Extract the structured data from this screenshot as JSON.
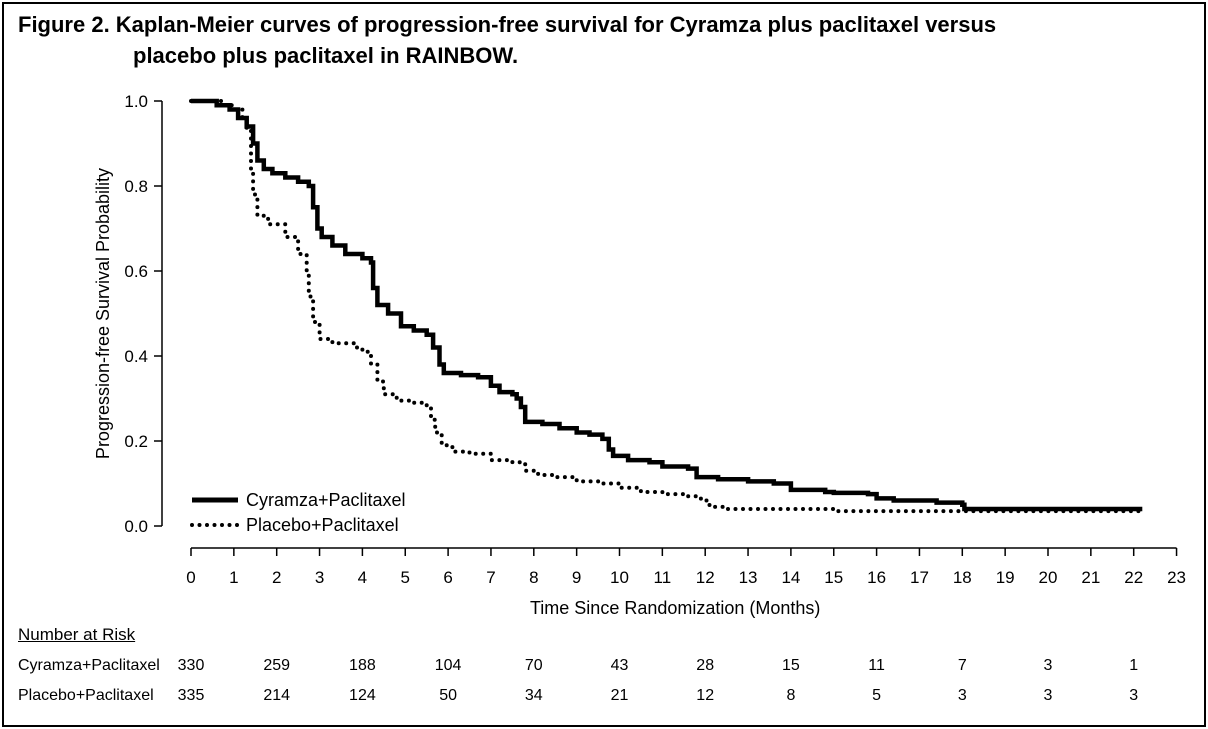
{
  "figure": {
    "title_line1": "Figure 2. Kaplan-Meier curves of progression-free survival for Cyramza plus paclitaxel versus",
    "title_line2": "placebo plus paclitaxel in RAINBOW."
  },
  "chart_data": {
    "type": "line",
    "step": true,
    "xlabel": "Time Since Randomization (Months)",
    "ylabel": "Progression-free Survival Probability",
    "xlim": [
      0,
      23
    ],
    "ylim": [
      0,
      1.0
    ],
    "x_ticks": [
      "0",
      "1",
      "2",
      "3",
      "4",
      "5",
      "6",
      "7",
      "8",
      "9",
      "10",
      "11",
      "12",
      "13",
      "14",
      "15",
      "16",
      "17",
      "18",
      "19",
      "20",
      "21",
      "22",
      "23"
    ],
    "y_ticks": [
      "0.0",
      "0.2",
      "0.4",
      "0.6",
      "0.8",
      "1.0"
    ],
    "legend_position": "bottom-left",
    "grid": false,
    "series": [
      {
        "name": "Cyramza+Paclitaxel",
        "style": "solid",
        "points": [
          [
            0,
            1.0
          ],
          [
            0.3,
            1.0
          ],
          [
            0.6,
            0.99
          ],
          [
            0.9,
            0.98
          ],
          [
            1.1,
            0.96
          ],
          [
            1.3,
            0.94
          ],
          [
            1.45,
            0.9
          ],
          [
            1.55,
            0.86
          ],
          [
            1.7,
            0.84
          ],
          [
            1.9,
            0.83
          ],
          [
            2.2,
            0.82
          ],
          [
            2.5,
            0.81
          ],
          [
            2.75,
            0.8
          ],
          [
            2.85,
            0.75
          ],
          [
            2.95,
            0.7
          ],
          [
            3.05,
            0.68
          ],
          [
            3.3,
            0.66
          ],
          [
            3.6,
            0.64
          ],
          [
            4.0,
            0.63
          ],
          [
            4.2,
            0.62
          ],
          [
            4.25,
            0.56
          ],
          [
            4.35,
            0.52
          ],
          [
            4.6,
            0.5
          ],
          [
            4.9,
            0.47
          ],
          [
            5.2,
            0.46
          ],
          [
            5.5,
            0.45
          ],
          [
            5.65,
            0.42
          ],
          [
            5.8,
            0.38
          ],
          [
            5.9,
            0.36
          ],
          [
            6.3,
            0.355
          ],
          [
            6.7,
            0.35
          ],
          [
            7.0,
            0.33
          ],
          [
            7.2,
            0.315
          ],
          [
            7.5,
            0.31
          ],
          [
            7.6,
            0.3
          ],
          [
            7.7,
            0.28
          ],
          [
            7.8,
            0.245
          ],
          [
            8.2,
            0.24
          ],
          [
            8.6,
            0.23
          ],
          [
            9.0,
            0.22
          ],
          [
            9.3,
            0.215
          ],
          [
            9.6,
            0.205
          ],
          [
            9.75,
            0.18
          ],
          [
            9.85,
            0.165
          ],
          [
            10.2,
            0.155
          ],
          [
            10.7,
            0.15
          ],
          [
            11.0,
            0.14
          ],
          [
            11.6,
            0.135
          ],
          [
            11.8,
            0.115
          ],
          [
            12.3,
            0.11
          ],
          [
            13.0,
            0.105
          ],
          [
            13.6,
            0.1
          ],
          [
            14.0,
            0.085
          ],
          [
            14.8,
            0.08
          ],
          [
            15.0,
            0.078
          ],
          [
            15.8,
            0.075
          ],
          [
            16.0,
            0.065
          ],
          [
            16.4,
            0.06
          ],
          [
            17.0,
            0.06
          ],
          [
            17.4,
            0.055
          ],
          [
            18.0,
            0.05
          ],
          [
            18.05,
            0.04
          ],
          [
            18.5,
            0.04
          ],
          [
            19.0,
            0.04
          ],
          [
            20.0,
            0.04
          ],
          [
            21.0,
            0.04
          ],
          [
            22.0,
            0.04
          ],
          [
            22.2,
            0.04
          ]
        ]
      },
      {
        "name": "Placebo+Paclitaxel",
        "style": "dotted",
        "points": [
          [
            0,
            1.0
          ],
          [
            0.4,
            1.0
          ],
          [
            0.7,
            0.99
          ],
          [
            1.0,
            0.98
          ],
          [
            1.2,
            0.96
          ],
          [
            1.3,
            0.93
          ],
          [
            1.4,
            0.84
          ],
          [
            1.45,
            0.78
          ],
          [
            1.55,
            0.73
          ],
          [
            1.8,
            0.71
          ],
          [
            2.2,
            0.68
          ],
          [
            2.5,
            0.64
          ],
          [
            2.7,
            0.6
          ],
          [
            2.75,
            0.54
          ],
          [
            2.85,
            0.48
          ],
          [
            3.0,
            0.44
          ],
          [
            3.3,
            0.43
          ],
          [
            3.8,
            0.42
          ],
          [
            4.0,
            0.41
          ],
          [
            4.2,
            0.38
          ],
          [
            4.35,
            0.34
          ],
          [
            4.5,
            0.31
          ],
          [
            4.8,
            0.295
          ],
          [
            5.2,
            0.29
          ],
          [
            5.5,
            0.28
          ],
          [
            5.6,
            0.25
          ],
          [
            5.7,
            0.22
          ],
          [
            5.85,
            0.19
          ],
          [
            6.1,
            0.175
          ],
          [
            6.5,
            0.17
          ],
          [
            7.0,
            0.155
          ],
          [
            7.5,
            0.15
          ],
          [
            7.8,
            0.13
          ],
          [
            8.1,
            0.12
          ],
          [
            8.5,
            0.115
          ],
          [
            9.0,
            0.105
          ],
          [
            9.5,
            0.1
          ],
          [
            10.0,
            0.09
          ],
          [
            10.5,
            0.08
          ],
          [
            11.0,
            0.075
          ],
          [
            11.5,
            0.07
          ],
          [
            11.9,
            0.06
          ],
          [
            12.1,
            0.045
          ],
          [
            12.5,
            0.04
          ],
          [
            13.5,
            0.04
          ],
          [
            14.5,
            0.04
          ],
          [
            15.0,
            0.035
          ],
          [
            16.0,
            0.035
          ],
          [
            17.0,
            0.035
          ],
          [
            18.0,
            0.035
          ],
          [
            19.0,
            0.035
          ],
          [
            20.0,
            0.035
          ],
          [
            21.0,
            0.035
          ],
          [
            22.0,
            0.035
          ],
          [
            22.2,
            0.035
          ]
        ]
      }
    ]
  },
  "risk_table": {
    "heading": "Number at Risk",
    "columns": [
      0,
      2,
      4,
      6,
      8,
      10,
      12,
      14,
      16,
      18,
      20,
      22
    ],
    "rows": [
      {
        "label": "Cyramza+Paclitaxel",
        "values": [
          "330",
          "259",
          "188",
          "104",
          "70",
          "43",
          "28",
          "15",
          "11",
          "7",
          "3",
          "1"
        ]
      },
      {
        "label": "Placebo+Paclitaxel",
        "values": [
          "335",
          "214",
          "124",
          "50",
          "34",
          "21",
          "12",
          "8",
          "5",
          "3",
          "3",
          "3"
        ]
      }
    ]
  }
}
